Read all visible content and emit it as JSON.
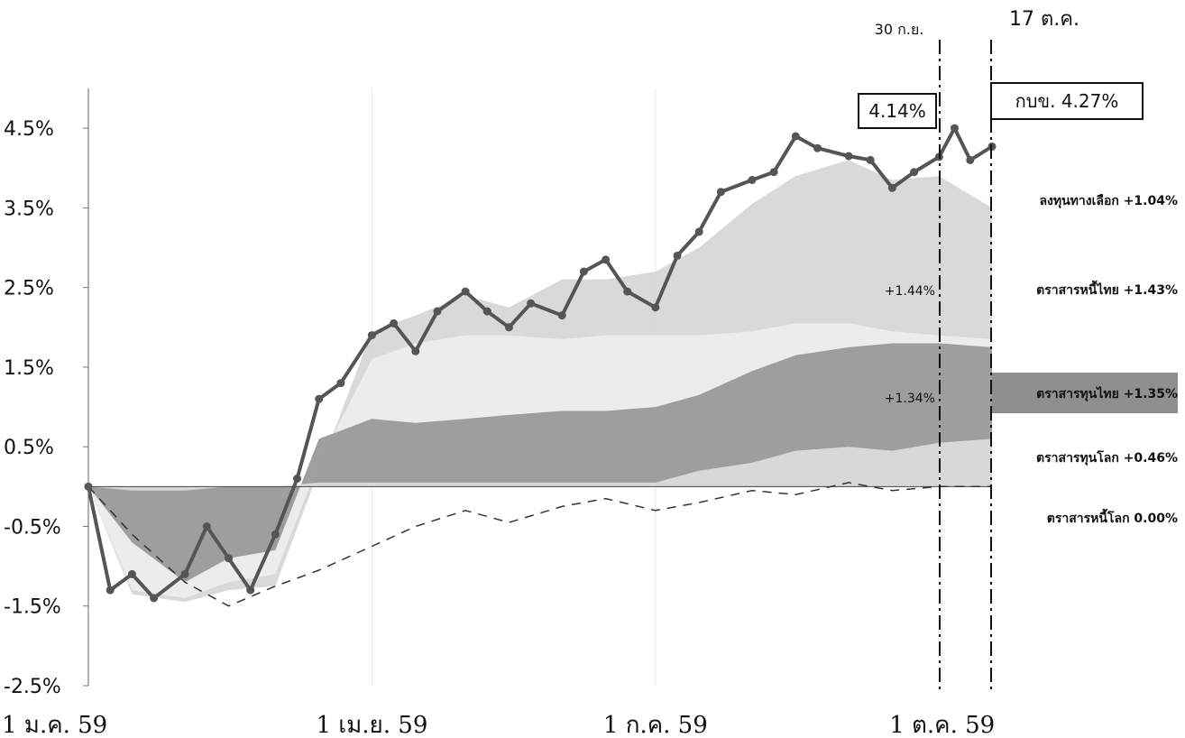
{
  "chart_data": {
    "type": "area",
    "ylim": [
      -2.5,
      5.0
    ],
    "y_ticks": [
      "4.5%",
      "3.5%",
      "2.5%",
      "1.5%",
      "0.5%",
      "-0.5%",
      "-1.5%",
      "-2.5%"
    ],
    "x_ticks": [
      "1 ม.ค. 59",
      "1 เม.ย. 59",
      "1 ก.ค. 59",
      "1 ต.ค. 59"
    ],
    "markers": [
      {
        "label": "30 ก.ย.",
        "date": "2016-09-30"
      },
      {
        "label": "17 ต.ค.",
        "date": "2016-10-17"
      }
    ],
    "boxes": [
      {
        "text": "4.14%"
      },
      {
        "text": "กบข.  4.27%"
      }
    ],
    "mid_labels": [
      "+1.44%",
      "+1.34%"
    ],
    "series": [
      {
        "name": "ลงทุนทางเลือก",
        "label": "ลงทุนทางเลือก +1.04%",
        "color": "#d2d2d2",
        "x": [
          "2016-01-01",
          "2016-01-15",
          "2016-02-01",
          "2016-02-15",
          "2016-03-01",
          "2016-03-15",
          "2016-04-01",
          "2016-04-15",
          "2016-05-01",
          "2016-05-15",
          "2016-06-01",
          "2016-06-15",
          "2016-07-01",
          "2016-07-15",
          "2016-08-01",
          "2016-08-15",
          "2016-09-01",
          "2016-09-15",
          "2016-09-30",
          "2016-10-17"
        ],
        "y": [
          0.0,
          -1.35,
          -1.45,
          -1.3,
          -1.25,
          0.2,
          1.95,
          2.15,
          2.4,
          2.25,
          2.6,
          2.6,
          2.7,
          3.0,
          3.55,
          3.9,
          4.1,
          3.85,
          3.9,
          3.5
        ]
      },
      {
        "name": "ตราสารหนี้ไทย",
        "label": "ตราสารหนี้ไทย +1.43%",
        "color": "#eeeeee",
        "x": [
          "2016-01-01",
          "2016-01-15",
          "2016-02-01",
          "2016-02-15",
          "2016-03-01",
          "2016-03-15",
          "2016-04-01",
          "2016-04-15",
          "2016-05-01",
          "2016-05-15",
          "2016-06-01",
          "2016-06-15",
          "2016-07-01",
          "2016-07-15",
          "2016-08-01",
          "2016-08-15",
          "2016-09-01",
          "2016-09-15",
          "2016-09-30",
          "2016-10-17"
        ],
        "y": [
          0.0,
          -1.3,
          -1.4,
          -1.2,
          -1.1,
          0.3,
          1.6,
          1.8,
          1.9,
          1.9,
          1.85,
          1.9,
          1.9,
          1.9,
          1.95,
          2.05,
          2.05,
          1.95,
          1.9,
          1.85
        ]
      },
      {
        "name": "ตราสารทุนไทย",
        "label": "ตราสารทุนไทย +1.35%",
        "color": "#9a9a9a",
        "x": [
          "2016-01-01",
          "2016-01-15",
          "2016-02-01",
          "2016-02-15",
          "2016-03-01",
          "2016-03-15",
          "2016-04-01",
          "2016-04-15",
          "2016-05-01",
          "2016-05-15",
          "2016-06-01",
          "2016-06-15",
          "2016-07-01",
          "2016-07-15",
          "2016-08-01",
          "2016-08-15",
          "2016-09-01",
          "2016-09-15",
          "2016-09-30",
          "2016-10-17"
        ],
        "y": [
          0.0,
          -0.7,
          -1.2,
          -0.9,
          -0.8,
          0.6,
          0.85,
          0.8,
          0.85,
          0.9,
          0.95,
          0.95,
          1.0,
          1.15,
          1.45,
          1.65,
          1.75,
          1.8,
          1.8,
          1.75
        ]
      },
      {
        "name": "ตราสารทุนโลก",
        "label": "ตราสารทุนโลก +0.46%",
        "color": "#e2e2e2",
        "x": [
          "2016-01-01",
          "2016-01-15",
          "2016-02-01",
          "2016-02-15",
          "2016-03-01",
          "2016-03-15",
          "2016-04-01",
          "2016-04-15",
          "2016-05-01",
          "2016-05-15",
          "2016-06-01",
          "2016-06-15",
          "2016-07-01",
          "2016-07-15",
          "2016-08-01",
          "2016-08-15",
          "2016-09-01",
          "2016-09-15",
          "2016-09-30",
          "2016-10-17"
        ],
        "y": [
          0.0,
          -0.05,
          -0.05,
          0.0,
          0.0,
          0.05,
          0.05,
          0.05,
          0.05,
          0.05,
          0.05,
          0.05,
          0.05,
          0.2,
          0.3,
          0.45,
          0.5,
          0.45,
          0.55,
          0.6
        ]
      },
      {
        "name": "ตราสารหนี้โลก",
        "label": "ตราสารหนี้โลก   0.00%",
        "color": "#333333",
        "x": [
          "2016-01-01",
          "2016-01-15",
          "2016-02-01",
          "2016-02-15",
          "2016-03-01",
          "2016-03-15",
          "2016-04-01",
          "2016-04-15",
          "2016-05-01",
          "2016-05-15",
          "2016-06-01",
          "2016-06-15",
          "2016-07-01",
          "2016-07-15",
          "2016-08-01",
          "2016-08-15",
          "2016-09-01",
          "2016-09-15",
          "2016-09-30",
          "2016-10-17"
        ],
        "y": [
          0.0,
          -0.6,
          -1.2,
          -1.5,
          -1.25,
          -1.05,
          -0.75,
          -0.5,
          -0.3,
          -0.45,
          -0.25,
          -0.15,
          -0.3,
          -0.2,
          -0.05,
          -0.1,
          0.05,
          -0.05,
          0.0,
          0.0
        ]
      },
      {
        "name": "กบข.",
        "label": "กบข.  4.27%",
        "color": "#555555",
        "x": [
          "2016-01-01",
          "2016-01-08",
          "2016-01-15",
          "2016-01-22",
          "2016-02-01",
          "2016-02-08",
          "2016-02-15",
          "2016-02-22",
          "2016-03-01",
          "2016-03-08",
          "2016-03-15",
          "2016-03-22",
          "2016-04-01",
          "2016-04-08",
          "2016-04-15",
          "2016-04-22",
          "2016-05-01",
          "2016-05-08",
          "2016-05-15",
          "2016-05-22",
          "2016-06-01",
          "2016-06-08",
          "2016-06-15",
          "2016-06-22",
          "2016-07-01",
          "2016-07-08",
          "2016-07-15",
          "2016-07-22",
          "2016-08-01",
          "2016-08-08",
          "2016-08-15",
          "2016-08-22",
          "2016-09-01",
          "2016-09-08",
          "2016-09-15",
          "2016-09-22",
          "2016-09-30",
          "2016-10-05",
          "2016-10-10",
          "2016-10-17"
        ],
        "y": [
          0.0,
          -1.3,
          -1.1,
          -1.4,
          -1.1,
          -0.5,
          -0.9,
          -1.3,
          -0.6,
          0.1,
          1.1,
          1.3,
          1.9,
          2.05,
          1.7,
          2.2,
          2.45,
          2.2,
          2.0,
          2.3,
          2.15,
          2.7,
          2.85,
          2.45,
          2.25,
          2.9,
          3.2,
          3.7,
          3.85,
          3.95,
          4.4,
          4.25,
          4.15,
          4.1,
          3.75,
          3.95,
          4.14,
          4.5,
          4.1,
          4.27
        ]
      }
    ]
  }
}
